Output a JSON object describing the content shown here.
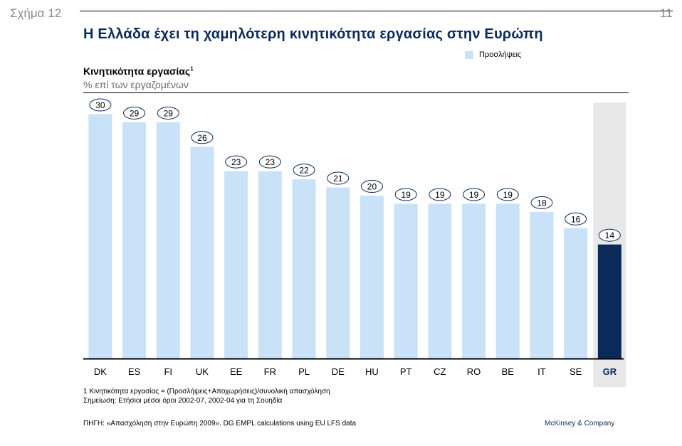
{
  "figure_label": "Σχήμα 12",
  "page_number": "11",
  "title": "Η Ελλάδα έχει τη χαμηλότερη κινητικότητα εργασίας στην Ευρώπη",
  "legend_label": "Προσλήψεις",
  "chart_title": "Κινητικότητα εργασίας",
  "chart_title_sup": "1",
  "chart_subtitle": "% επί των εργαζομένων",
  "footnotes": [
    "1 Κινητικότητα εργασίας = (Προσλήψεις+Αποχωρήσεις)/συνολική απασχόληση",
    "Σημείωση: Ετήσιοι μέσοι όροι 2002-07, 2002-04 για τη Σουηδία"
  ],
  "source": "ΠΗΓΗ: «Απασχόληση στην Ευρώπη 2009». DG EMPL calculations using EU LFS data",
  "brand": "McKinsey & Company",
  "colors": {
    "bar": "#c9e2f8",
    "highlight_bar": "#0b2a59",
    "highlight_band": "#e8e8e8",
    "title": "#0b2a59"
  },
  "chart_data": {
    "type": "bar",
    "categories": [
      "DK",
      "ES",
      "FI",
      "UK",
      "EE",
      "FR",
      "PL",
      "DE",
      "HU",
      "PT",
      "CZ",
      "RO",
      "BE",
      "IT",
      "SE",
      "GR"
    ],
    "series": [
      {
        "name": "Προσλήψεις",
        "values": [
          30,
          29,
          29,
          26,
          23,
          23,
          22,
          21,
          20,
          19,
          19,
          19,
          19,
          18,
          16,
          14
        ]
      }
    ],
    "highlight": "GR",
    "ylim": [
      0,
      30
    ],
    "grid": false,
    "legend": "top-right"
  }
}
